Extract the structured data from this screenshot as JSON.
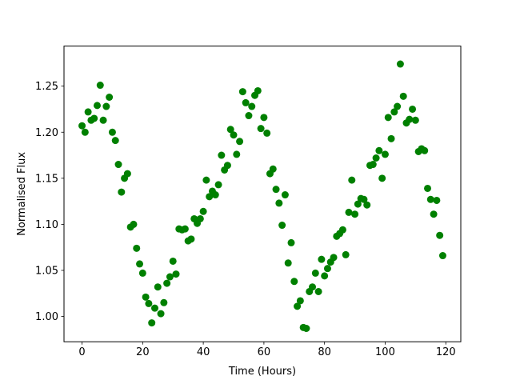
{
  "chart_data": {
    "type": "scatter",
    "title": "",
    "xlabel": "Time (Hours)",
    "ylabel": "Normalised Flux",
    "xlim": [
      -5.95,
      124.95
    ],
    "ylim": [
      0.9725,
      1.2935
    ],
    "xticks": [
      0,
      20,
      40,
      60,
      80,
      100,
      120
    ],
    "xtick_labels": [
      "0",
      "20",
      "40",
      "60",
      "80",
      "100",
      "120"
    ],
    "yticks": [
      1.0,
      1.05,
      1.1,
      1.15,
      1.2,
      1.25
    ],
    "ytick_labels": [
      "1.00",
      "1.05",
      "1.10",
      "1.15",
      "1.20",
      "1.25"
    ],
    "grid": false,
    "legend": "none",
    "marker_color": "#008000",
    "series": [
      {
        "x": [
          0,
          1,
          2,
          3,
          4,
          5,
          6,
          7,
          8,
          9,
          10,
          11,
          12,
          13,
          14,
          15,
          16,
          17,
          18,
          19,
          20,
          21,
          22,
          23,
          24,
          25,
          26,
          27,
          28,
          29,
          30,
          31,
          32,
          33,
          34,
          35,
          36,
          37,
          38,
          39,
          40,
          41,
          42,
          43,
          44,
          45,
          46,
          47,
          48,
          49,
          50,
          51,
          52,
          53,
          54,
          55,
          56,
          57,
          58,
          59,
          60,
          61,
          62,
          63,
          64,
          65,
          66,
          67,
          68,
          69,
          70,
          71,
          72,
          73,
          74,
          75,
          76,
          77,
          78,
          79,
          80,
          81,
          82,
          83,
          84,
          85,
          86,
          87,
          88,
          89,
          90,
          91,
          92,
          93,
          94,
          95,
          96,
          97,
          98,
          99,
          100,
          101,
          102,
          103,
          104,
          105,
          106,
          107,
          108,
          109,
          110,
          111,
          112,
          113,
          114,
          115,
          116,
          117,
          118,
          119
        ],
        "y": [
          1.207,
          1.2,
          1.222,
          1.213,
          1.215,
          1.229,
          1.251,
          1.213,
          1.228,
          1.238,
          1.2,
          1.191,
          1.165,
          1.135,
          1.15,
          1.155,
          1.097,
          1.1,
          1.074,
          1.057,
          1.047,
          1.021,
          1.014,
          0.993,
          1.009,
          1.032,
          1.003,
          1.015,
          1.036,
          1.043,
          1.06,
          1.046,
          1.095,
          1.094,
          1.095,
          1.082,
          1.084,
          1.106,
          1.101,
          1.106,
          1.114,
          1.148,
          1.13,
          1.136,
          1.132,
          1.143,
          1.175,
          1.159,
          1.164,
          1.203,
          1.197,
          1.176,
          1.19,
          1.244,
          1.232,
          1.218,
          1.228,
          1.24,
          1.245,
          1.204,
          1.216,
          1.199,
          1.155,
          1.16,
          1.138,
          1.123,
          1.099,
          1.132,
          1.058,
          1.08,
          1.038,
          1.011,
          1.017,
          0.988,
          0.987,
          1.027,
          1.032,
          1.047,
          1.027,
          1.062,
          1.044,
          1.052,
          1.059,
          1.064,
          1.087,
          1.09,
          1.094,
          1.067,
          1.113,
          1.148,
          1.111,
          1.122,
          1.128,
          1.127,
          1.121,
          1.164,
          1.165,
          1.172,
          1.18,
          1.15,
          1.176,
          1.216,
          1.193,
          1.222,
          1.228,
          1.274,
          1.239,
          1.21,
          1.214,
          1.225,
          1.213,
          1.179,
          1.182,
          1.18,
          1.139,
          1.127,
          1.111,
          1.126,
          1.088,
          1.066
        ]
      }
    ]
  }
}
